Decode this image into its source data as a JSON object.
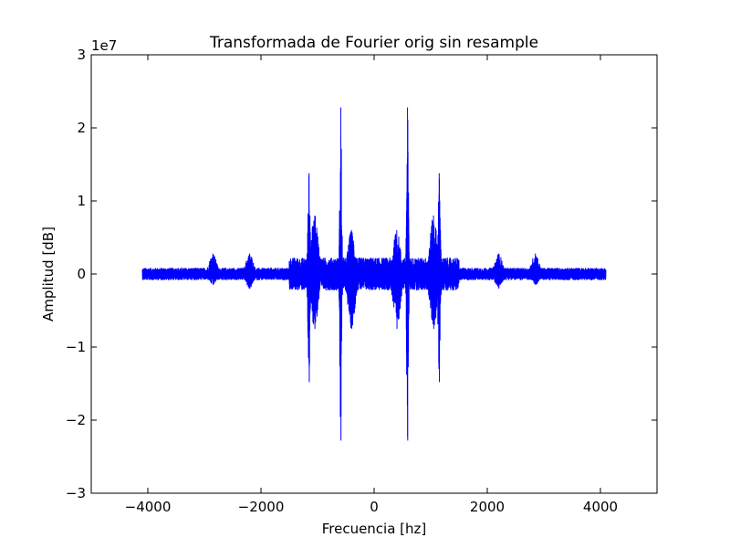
{
  "chart_data": {
    "type": "line",
    "title": "Transformada de Fourier orig sin resample",
    "xlabel": "Frecuencia [hz]",
    "ylabel": "Amplitud [dB]",
    "y_offset_label": "1e7",
    "xlim": [
      -5000,
      5000
    ],
    "ylim": [
      -3,
      3
    ],
    "x_ticks": [
      -4000,
      -2000,
      0,
      2000,
      4000
    ],
    "x_tick_labels": [
      "−4000",
      "−2000",
      "0",
      "2000",
      "4000"
    ],
    "y_ticks": [
      -3,
      -2,
      -1,
      0,
      1,
      2,
      3
    ],
    "y_tick_labels": [
      "−3",
      "−2",
      "−1",
      "0",
      "1",
      "2",
      "3"
    ],
    "grid": false,
    "series": [
      {
        "color": "#0000ff",
        "x_range": [
          -4096,
          4096
        ],
        "baseline_amplitude": 0.08,
        "features": [
          {
            "x": -1150,
            "max": 1.38,
            "min": -1.48
          },
          {
            "x": -590,
            "max": 2.28,
            "min": -2.28
          },
          {
            "x": 590,
            "max": 2.28,
            "min": -2.28
          },
          {
            "x": 1150,
            "max": 1.38,
            "min": -1.48
          },
          {
            "x": -1050,
            "max": 0.8,
            "min": -0.75
          },
          {
            "x": 1050,
            "max": 0.8,
            "min": -0.75
          },
          {
            "x": -400,
            "max": 0.6,
            "min": -0.75
          },
          {
            "x": 400,
            "max": 0.6,
            "min": -0.75
          },
          {
            "x": -2200,
            "max": 0.28,
            "min": -0.2
          },
          {
            "x": 2200,
            "max": 0.28,
            "min": -0.2
          },
          {
            "x": -2850,
            "max": 0.28,
            "min": -0.15
          },
          {
            "x": 2850,
            "max": 0.28,
            "min": -0.15
          }
        ]
      }
    ]
  }
}
